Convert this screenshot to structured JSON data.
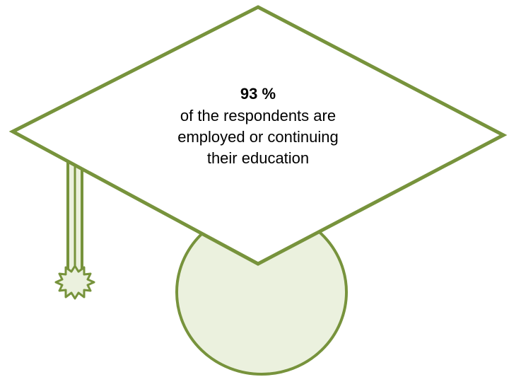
{
  "stat": {
    "value": "93 %",
    "lines": [
      "of the respondents are",
      "employed or continuing",
      "their education"
    ]
  },
  "colors": {
    "stroke": "#77933c",
    "fill_light": "#ebf1de",
    "fill_white": "#ffffff"
  }
}
